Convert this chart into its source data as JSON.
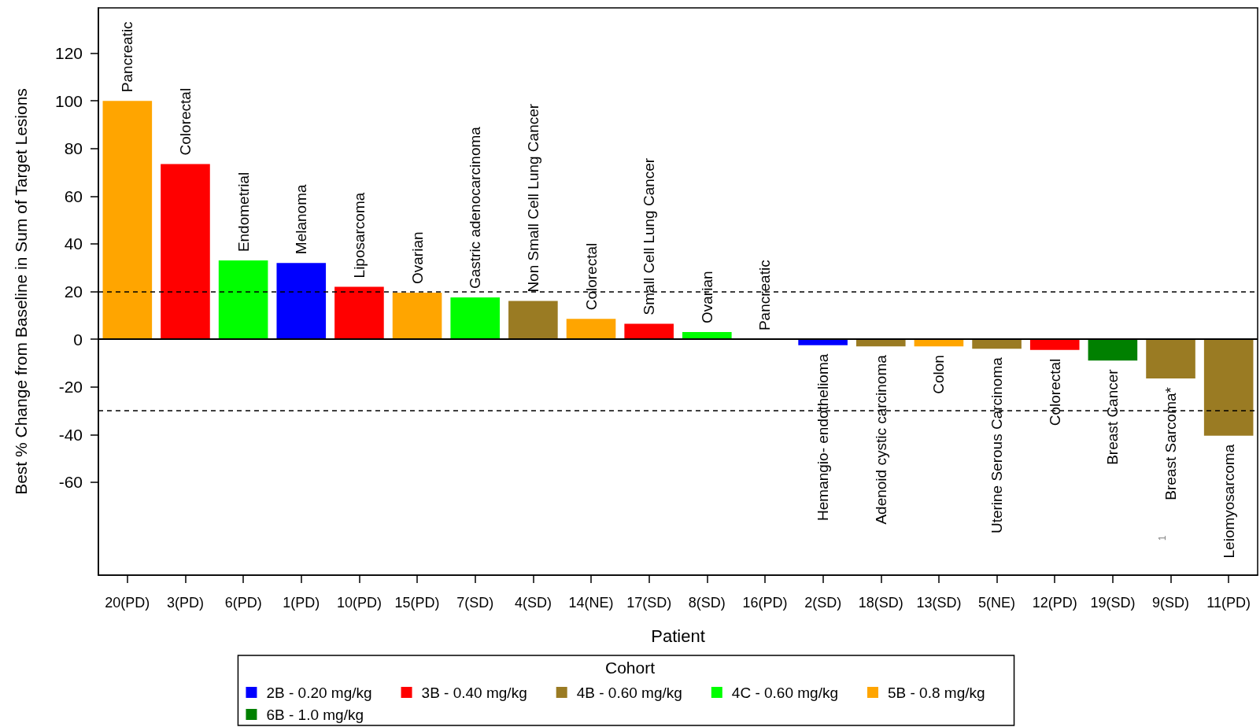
{
  "chart_data": {
    "type": "bar",
    "stacked": true,
    "categories": [
      "20(PD)",
      "3(PD)",
      "6(PD)",
      "1(PD)",
      "10(PD)",
      "15(PD)",
      "7(SD)",
      "4(SD)",
      "14(NE)",
      "17(SD)",
      "8(SD)",
      "16(PD)",
      "2(SD)",
      "18(SD)",
      "13(SD)",
      "5(NE)",
      "12(PD)",
      "19(SD)",
      "9(SD)",
      "11(PD)"
    ],
    "series": [
      {
        "name": "2B - 0.20 mg/kg",
        "color": "#0000ff",
        "values": [
          null,
          null,
          null,
          32,
          null,
          null,
          null,
          null,
          null,
          null,
          null,
          null,
          -2.5,
          null,
          null,
          null,
          null,
          null,
          null,
          null
        ]
      },
      {
        "name": "3B - 0.40 mg/kg",
        "color": "#ff0000",
        "values": [
          null,
          73.5,
          null,
          null,
          22,
          null,
          null,
          null,
          null,
          6.5,
          null,
          null,
          null,
          null,
          null,
          null,
          -4.5,
          null,
          null,
          null
        ]
      },
      {
        "name": "4B - 0.60 mg/kg",
        "color": "#9a7b23",
        "values": [
          null,
          null,
          null,
          null,
          null,
          null,
          null,
          16,
          null,
          null,
          null,
          null,
          null,
          -3,
          null,
          -4,
          null,
          null,
          -16.5,
          -40.5
        ]
      },
      {
        "name": "4C - 0.60 mg/kg",
        "color": "#00ff00",
        "values": [
          null,
          null,
          33,
          null,
          null,
          null,
          17.5,
          null,
          null,
          null,
          3,
          null,
          null,
          null,
          null,
          null,
          null,
          null,
          null,
          null
        ]
      },
      {
        "name": "5B - 0.8 mg/kg",
        "color": "#ffa500",
        "values": [
          100,
          null,
          null,
          null,
          null,
          19.5,
          null,
          null,
          8.5,
          null,
          null,
          null,
          null,
          null,
          -3,
          null,
          null,
          null,
          null,
          null
        ]
      },
      {
        "name": "6B - 1.0 mg/kg",
        "color": "#008000",
        "values": [
          null,
          null,
          null,
          null,
          null,
          null,
          null,
          null,
          null,
          null,
          null,
          null,
          null,
          null,
          null,
          null,
          null,
          -9,
          null,
          null
        ]
      }
    ],
    "xlabel": "Patient",
    "ylabel": "Best % Change from Baseline in Sum of Target Lesions",
    "legend_title": "Cohort",
    "legend": "bottom",
    "ylim": [
      -99,
      139
    ],
    "yticks": [
      -60,
      -40,
      -20,
      0,
      20,
      40,
      60,
      80,
      100,
      120
    ],
    "ref_lines": [
      {
        "axis": "y",
        "value": 0,
        "color": "#000000",
        "line_style": "solid"
      },
      {
        "axis": "y",
        "value": 20,
        "color": "#000000",
        "line_style": "dashed"
      },
      {
        "axis": "y",
        "value": -30,
        "color": "#000000",
        "line_style": "dashed"
      }
    ],
    "annotations": [
      {
        "text": "Pancreatic",
        "x": "20(PD)",
        "y": 100
      },
      {
        "text": "Colorectal",
        "x": "3(PD)",
        "y": 73.5
      },
      {
        "text": "Endometrial",
        "x": "6(PD)",
        "y": 33
      },
      {
        "text": "Melanoma",
        "x": "1(PD)",
        "y": 32
      },
      {
        "text": "Liposarcoma",
        "x": "10(PD)",
        "y": 22
      },
      {
        "text": "Ovarian",
        "x": "15(PD)",
        "y": 19.5
      },
      {
        "text": "Gastric adenocarcinoma",
        "x": "7(SD)",
        "y": 17.5
      },
      {
        "text": "Non Small Cell Lung Cancer",
        "x": "4(SD)",
        "y": 16
      },
      {
        "text": "Colorectal",
        "x": "14(NE)",
        "y": 8.5
      },
      {
        "text": "Small Cell Lung Cancer",
        "x": "17(SD)",
        "y": 6.5
      },
      {
        "text": "Ovarian",
        "x": "8(SD)",
        "y": 3
      },
      {
        "text": "Pancreatic",
        "x": "16(PD)",
        "y": 0
      },
      {
        "text": "Hemangio- endothelioma",
        "x": "2(SD)",
        "y": -2.5
      },
      {
        "text": "Adenoid cystic carcinoma",
        "x": "18(SD)",
        "y": -3
      },
      {
        "text": "Colon",
        "x": "13(SD)",
        "y": -3
      },
      {
        "text": "Uterine Serous Carcinoma",
        "x": "5(NE)",
        "y": -4
      },
      {
        "text": "Colorectal",
        "x": "12(PD)",
        "y": -4.5
      },
      {
        "text": "Breast Cancer",
        "x": "19(SD)",
        "y": -9
      },
      {
        "text": "Breast Sarcoma*",
        "x": "9(SD)",
        "y": -16.5
      },
      {
        "text": "Leiomyosarcoma",
        "x": "11(PD)",
        "y": -40.5
      },
      "1"
    ]
  }
}
